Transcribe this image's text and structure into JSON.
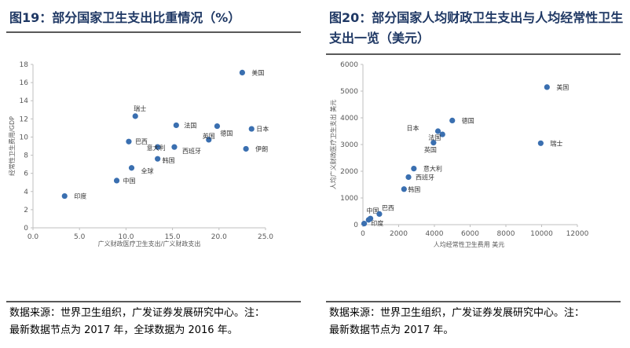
{
  "chart_data": [
    {
      "type": "scatter",
      "title": "图19：部分国家卫生支出比重情况（%）",
      "xlabel": "广义财政医疗卫生支出/广义财政支出",
      "ylabel": "经常性卫生费用/GDP",
      "xlim": [
        0,
        25
      ],
      "ylim": [
        0,
        18
      ],
      "xticks": [
        "0.0",
        "5.0",
        "10.0",
        "15.0",
        "20.0",
        "25.0"
      ],
      "yticks": [
        "0",
        "2",
        "4",
        "6",
        "8",
        "10",
        "12",
        "14",
        "16",
        "18"
      ],
      "points": [
        {
          "label": "印度",
          "x": 3.4,
          "y": 3.5
        },
        {
          "label": "中国",
          "x": 9.0,
          "y": 5.2
        },
        {
          "label": "全球",
          "x": 10.6,
          "y": 6.6
        },
        {
          "label": "韩国",
          "x": 13.4,
          "y": 7.6
        },
        {
          "label": "巴西",
          "x": 10.3,
          "y": 9.5
        },
        {
          "label": "意大利",
          "x": 13.4,
          "y": 8.9
        },
        {
          "label": "西班牙",
          "x": 15.2,
          "y": 8.9
        },
        {
          "label": "瑞士",
          "x": 11.0,
          "y": 12.3
        },
        {
          "label": "法国",
          "x": 15.4,
          "y": 11.3
        },
        {
          "label": "英国",
          "x": 18.9,
          "y": 9.7
        },
        {
          "label": "德国",
          "x": 19.8,
          "y": 11.2
        },
        {
          "label": "伊朗",
          "x": 22.9,
          "y": 8.7
        },
        {
          "label": "日本",
          "x": 23.5,
          "y": 10.9
        },
        {
          "label": "美国",
          "x": 22.5,
          "y": 17.1
        }
      ]
    },
    {
      "type": "scatter",
      "title": "图20：部分国家人均财政卫生支出与人均经常性卫生支出一览（美元）",
      "xlabel": "人均经常性卫生费用 美元",
      "ylabel": "人均广义财政医疗卫生支出 美元",
      "xlim": [
        0,
        12000
      ],
      "ylim": [
        0,
        6000
      ],
      "xticks": [
        "0",
        "2000",
        "4000",
        "6000",
        "8000",
        "10000",
        "12000"
      ],
      "yticks": [
        "0",
        "1000",
        "2000",
        "3000",
        "4000",
        "5000",
        "6000"
      ],
      "points": [
        {
          "label": "",
          "x": 70,
          "y": 40
        },
        {
          "label": "印度",
          "x": 320,
          "y": 180
        },
        {
          "label": "中国",
          "x": 420,
          "y": 230
        },
        {
          "label": "巴西",
          "x": 920,
          "y": 400
        },
        {
          "label": "韩国",
          "x": 2300,
          "y": 1330
        },
        {
          "label": "西班牙",
          "x": 2550,
          "y": 1780
        },
        {
          "label": "意大利",
          "x": 2850,
          "y": 2100
        },
        {
          "label": "英国",
          "x": 3950,
          "y": 3070
        },
        {
          "label": "日本",
          "x": 4200,
          "y": 3500
        },
        {
          "label": "法国",
          "x": 4450,
          "y": 3380
        },
        {
          "label": "德国",
          "x": 5000,
          "y": 3900
        },
        {
          "label": "瑞士",
          "x": 9950,
          "y": 3050
        },
        {
          "label": "美国",
          "x": 10300,
          "y": 5150
        }
      ]
    }
  ],
  "captions": {
    "left_source": "数据来源：世界卫生组织，广发证券发展研究中心。注：",
    "left_note": "最新数据节点为 2017 年，全球数据为 2016 年。",
    "right_source": "数据来源：世界卫生组织，广发证券发展研究中心。注：",
    "right_note": "最新数据节点为 2017 年。"
  },
  "colors": {
    "marker": "#3a6fb0",
    "title": "#1f3864",
    "axis": "#bfbfbf",
    "tick_text": "#595959"
  }
}
